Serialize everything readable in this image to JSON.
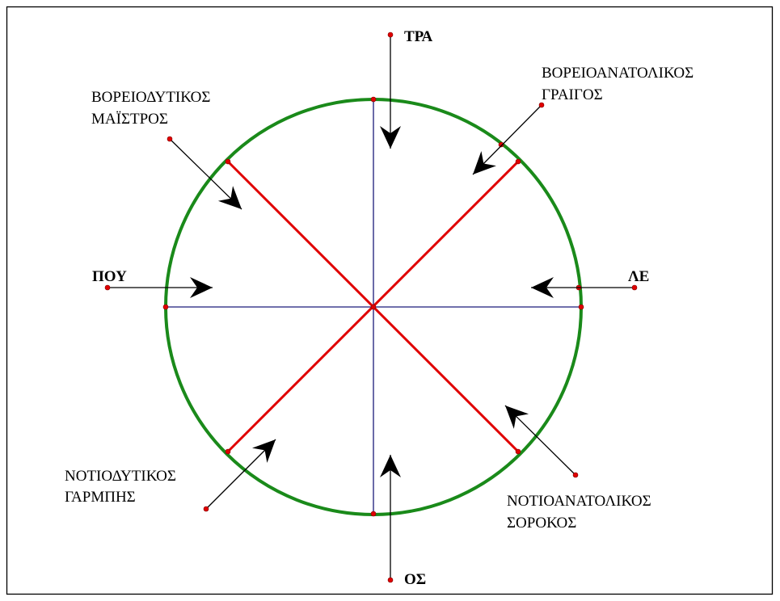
{
  "winds": [
    {
      "lines": [
        "ΤΡΑ"
      ]
    },
    {
      "lines": [
        "ΛΕ"
      ]
    },
    {
      "lines": [
        "ΟΣ"
      ]
    },
    {
      "lines": [
        "ΠΟΥ"
      ]
    },
    {
      "lines": [
        "ΒΟΡΕΙΟΔΥΤΙΚΟΣ",
        "ΜΑΪΣΤΡΟΣ"
      ]
    },
    {
      "lines": [
        "ΒΟΡΕΙΟΑΝΑΤΟΛΙΚΟΣ",
        "ΓΡΑΙΓΟΣ"
      ]
    },
    {
      "lines": [
        "ΝΟΤΙΟΔΥΤΙΚΟΣ",
        "ΓΑΡΜΠΗΣ"
      ]
    },
    {
      "lines": [
        "ΝΟΤΙΟΑΝΑΤΟΛΙΚΟΣ",
        "ΣΟΡΟΚΟΣ"
      ]
    }
  ]
}
